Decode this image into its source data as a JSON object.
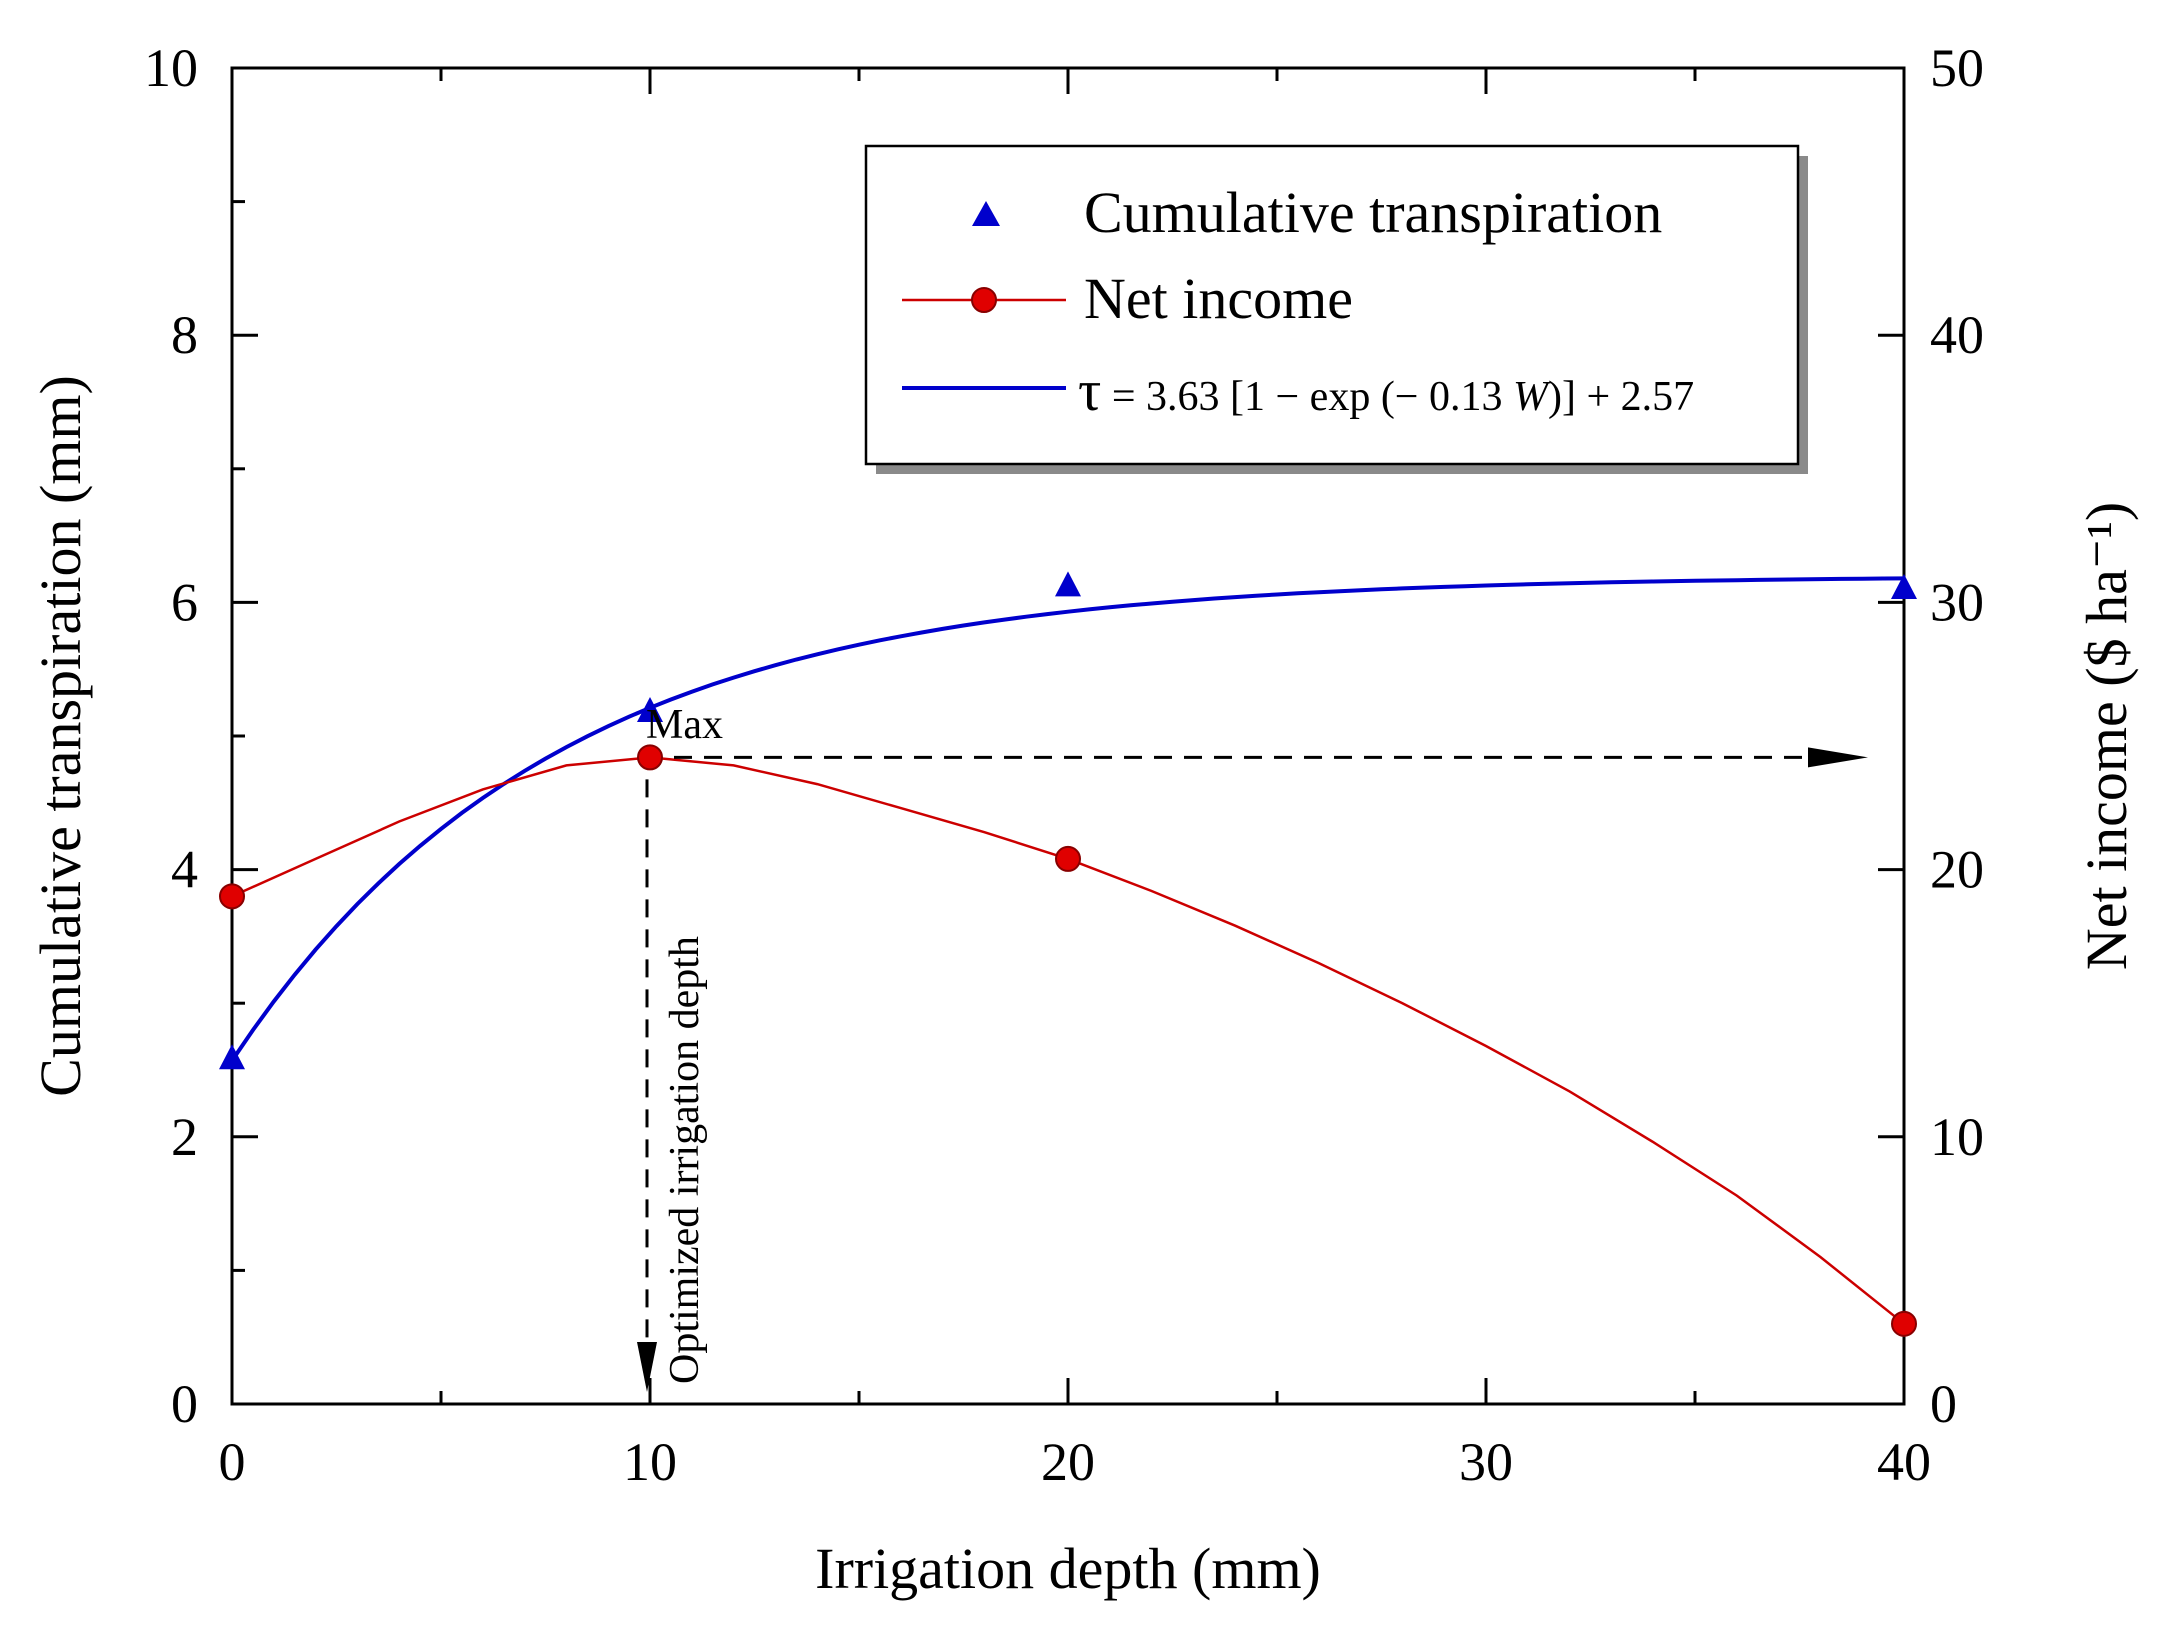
{
  "chart_data": {
    "type": "line",
    "x": [
      0,
      10,
      20,
      40
    ],
    "xlabel": "Irrigation depth (mm)",
    "xlim": [
      0,
      40
    ],
    "xticks": [
      "0",
      "10",
      "20",
      "30",
      "40"
    ],
    "ylabel": "Cumulative transpiration (mm)",
    "ylim": [
      0,
      10
    ],
    "yticks": [
      "0",
      "2",
      "4",
      "6",
      "8",
      "10"
    ],
    "y2label": "Net income ($ ha⁻¹)",
    "y2lim": [
      0,
      50
    ],
    "y2ticks": [
      "0",
      "10",
      "20",
      "30",
      "40",
      "50"
    ],
    "series": [
      {
        "name": "Cumulative transpiration",
        "axis": "left",
        "marker": "triangle",
        "x": [
          0,
          10,
          20,
          40
        ],
        "values": [
          2.58,
          5.18,
          6.12,
          6.1
        ],
        "color": "#0000cc"
      },
      {
        "name": "Net income",
        "axis": "right",
        "marker": "circle",
        "x": [
          0,
          10,
          20,
          40
        ],
        "values": [
          19.0,
          24.2,
          20.4,
          3.0
        ],
        "smooth_curve": [
          [
            0,
            19.0
          ],
          [
            2,
            20.4
          ],
          [
            4,
            21.8
          ],
          [
            6,
            23.0
          ],
          [
            8,
            23.9
          ],
          [
            10,
            24.2
          ],
          [
            12,
            23.9
          ],
          [
            14,
            23.2
          ],
          [
            16,
            22.3
          ],
          [
            18,
            21.4
          ],
          [
            20,
            20.4
          ],
          [
            22,
            19.2
          ],
          [
            24,
            17.9
          ],
          [
            26,
            16.5
          ],
          [
            28,
            15.0
          ],
          [
            30,
            13.4
          ],
          [
            32,
            11.7
          ],
          [
            34,
            9.8
          ],
          [
            36,
            7.8
          ],
          [
            38,
            5.5
          ],
          [
            40,
            3.0
          ]
        ],
        "color": "#cc0000"
      }
    ],
    "fit": {
      "name": "τ = 3.63 [1 − exp (− 0.13 W)] + 2.57",
      "a": 3.63,
      "k": 0.13,
      "c": 2.57,
      "color": "#0000cc"
    },
    "annotations": {
      "max_label": "Max",
      "optimized_label": "Optimized irrigation depth",
      "optimum_x": 10,
      "optimum_income": 24.2
    },
    "legend": {
      "position": "top-right",
      "entries": [
        "Cumulative transpiration",
        "Net income"
      ],
      "equation": {
        "tau": "τ",
        "part1": " = 3.63 [1 − exp (− 0.13 ",
        "var": "W",
        "part2": ")] + 2.57"
      }
    }
  }
}
